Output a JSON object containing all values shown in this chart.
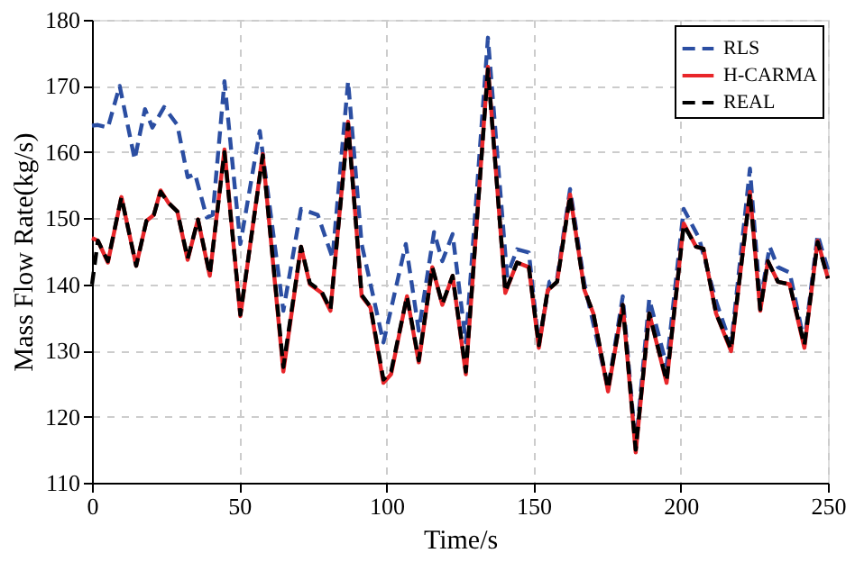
{
  "chart_data": {
    "type": "line",
    "xlabel": "Time/s",
    "ylabel": "Mass Flow Rate(kg/s)",
    "xlim": [
      0,
      250
    ],
    "ylim": [
      110,
      180
    ],
    "xticks": [
      0,
      50,
      100,
      150,
      200,
      250
    ],
    "yticks": [
      110,
      120,
      130,
      140,
      150,
      160,
      170,
      180
    ],
    "grid": true,
    "legend": "top right",
    "marker": "none",
    "series": [
      {
        "name": "RLS",
        "color": "#2b4ea2",
        "line_style": "dashed",
        "x": [
          0,
          2,
          5.4,
          9.4,
          14.5,
          18,
          20.5,
          24.5,
          29,
          32.5,
          35,
          39,
          41,
          45,
          50.4,
          57,
          65,
          71,
          76.7,
          81.7,
          87,
          91.6,
          99,
          106.6,
          111,
          116.2,
          119,
          122.5,
          127,
          134.5,
          141,
          144.4,
          148.4,
          151.8,
          155.4,
          158,
          162.4,
          167.3,
          175.3,
          180.3,
          184.7,
          189.3,
          195.2,
          201,
          206.2,
          212,
          217.1,
          223.5,
          227,
          230.2,
          233,
          237,
          242,
          246.5,
          250
        ],
        "values": [
          164,
          164.1,
          163.7,
          170,
          158.9,
          166.5,
          163.7,
          166.8,
          164.1,
          156.2,
          156.7,
          150.1,
          150.5,
          170.7,
          146.1,
          163.2,
          136,
          151.4,
          150.5,
          144,
          170.7,
          146.1,
          131.2,
          146.1,
          133,
          147.9,
          143.5,
          147.6,
          131.2,
          177.3,
          141.3,
          145.3,
          144.8,
          130.8,
          140.4,
          140.9,
          154.4,
          140,
          124.2,
          138.2,
          115.4,
          137.8,
          127.7,
          151.4,
          147,
          137.4,
          130.8,
          157.5,
          137.4,
          145.7,
          142.6,
          141.8,
          131.2,
          147.5,
          142.2
        ]
      },
      {
        "name": "H-CARMA",
        "color": "#e8262a",
        "line_style": "solid",
        "x": [
          0,
          2,
          5.4,
          10,
          15,
          18.5,
          21,
          23.3,
          26,
          29,
          32.5,
          36,
          40,
          45,
          50.4,
          58,
          65,
          71,
          74,
          78,
          81,
          87,
          91.6,
          94.6,
          99,
          101.6,
          107,
          111,
          115.6,
          119,
          122.5,
          127,
          134.5,
          140.4,
          144.4,
          148.4,
          151.8,
          154.8,
          158,
          162.4,
          167.3,
          170.3,
          175.3,
          180.3,
          184.7,
          189.3,
          195.2,
          201,
          205.2,
          207.7,
          212,
          217.1,
          223.5,
          227,
          229.6,
          233,
          237,
          242,
          246.5,
          250
        ],
        "values": [
          147,
          146.6,
          143.3,
          153.2,
          142.8,
          149.6,
          150.5,
          154.2,
          152.3,
          151,
          143.7,
          149.8,
          141.3,
          160.4,
          135.2,
          159.7,
          126.8,
          145.7,
          140,
          138.7,
          136,
          164.6,
          138.2,
          136.5,
          125.1,
          126.4,
          138.2,
          128.2,
          142.6,
          136.9,
          141.3,
          126.4,
          172.9,
          138.7,
          143.3,
          142.6,
          130.4,
          139.1,
          140.4,
          153.6,
          139.1,
          135.6,
          123.8,
          136.9,
          114.6,
          135.6,
          125.1,
          149.2,
          145.7,
          145.4,
          135.6,
          129.9,
          154,
          136,
          143.5,
          140.4,
          140,
          130.4,
          146.6,
          140.9
        ]
      },
      {
        "name": "REAL",
        "color": "#000000",
        "line_style": "dashed",
        "x": [
          0,
          2,
          5.4,
          10,
          15,
          18.5,
          21,
          23.3,
          26,
          29,
          32.5,
          36,
          40,
          45,
          50.4,
          58,
          65,
          71,
          74,
          78,
          81,
          87,
          91.6,
          94.6,
          99,
          101.6,
          107,
          111,
          115.6,
          119,
          122.5,
          127,
          134.5,
          140.4,
          144.4,
          148.4,
          151.8,
          154.8,
          158,
          162.4,
          167.3,
          170.3,
          175.3,
          180.3,
          184.7,
          189.3,
          195.2,
          201,
          205.2,
          207.7,
          212,
          217.1,
          223.5,
          227,
          229.6,
          233,
          237,
          242,
          246.5,
          250
        ],
        "values": [
          140,
          146.6,
          143.5,
          153.2,
          142.8,
          149.6,
          150.5,
          154,
          152.3,
          151,
          143.9,
          149.8,
          141.5,
          160,
          135.4,
          159.5,
          127.5,
          145.7,
          140.2,
          138.9,
          136.2,
          164.2,
          138.4,
          136.6,
          125.6,
          126.8,
          138.2,
          128.5,
          142.6,
          137,
          141.3,
          126.8,
          172.5,
          138.9,
          143.3,
          142.6,
          130.8,
          139.1,
          140.4,
          153.4,
          139.1,
          135.6,
          124.2,
          136.9,
          115,
          135.6,
          125.4,
          149,
          145.7,
          145.4,
          135.6,
          130.2,
          153.8,
          136.2,
          143.5,
          140.4,
          140,
          130.8,
          146.4,
          140.9
        ]
      }
    ]
  }
}
